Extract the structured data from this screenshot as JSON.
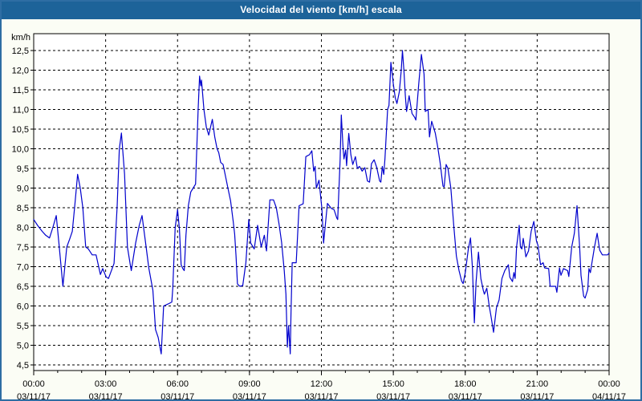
{
  "window": {
    "title": "Velocidad del viento [km/h] escala"
  },
  "chart_data": {
    "type": "line",
    "title": "Velocidad del viento [km/h] escala",
    "xlabel": "",
    "ylabel": "km/h",
    "x_unit": "hours since 03/11/17 00:00",
    "xlim": [
      0,
      24
    ],
    "ylim": [
      4.5,
      12.5
    ],
    "grid": "dashed-black",
    "legend": "none",
    "line_color": "#0000cd",
    "titlebar_color": "#1d6399",
    "border_color": "#2e6da3",
    "y_ticks": [
      {
        "v": 4.5,
        "label": "4,5"
      },
      {
        "v": 5.0,
        "label": "5,0"
      },
      {
        "v": 5.5,
        "label": "5,5"
      },
      {
        "v": 6.0,
        "label": "6,0"
      },
      {
        "v": 6.5,
        "label": "6,5"
      },
      {
        "v": 7.0,
        "label": "7,0"
      },
      {
        "v": 7.5,
        "label": "7,5"
      },
      {
        "v": 8.0,
        "label": "8,0"
      },
      {
        "v": 8.5,
        "label": "8,5"
      },
      {
        "v": 9.0,
        "label": "9,0"
      },
      {
        "v": 9.5,
        "label": "9,5"
      },
      {
        "v": 10.0,
        "label": "10,0"
      },
      {
        "v": 10.5,
        "label": "10,5"
      },
      {
        "v": 11.0,
        "label": "11,0"
      },
      {
        "v": 11.5,
        "label": "11,5"
      },
      {
        "v": 12.0,
        "label": "12,0"
      },
      {
        "v": 12.5,
        "label": "12,5"
      }
    ],
    "x_ticks": [
      {
        "h": 0,
        "time": "00:00",
        "date": "03/11/17"
      },
      {
        "h": 3,
        "time": "03:00",
        "date": "03/11/17"
      },
      {
        "h": 6,
        "time": "06:00",
        "date": "03/11/17"
      },
      {
        "h": 9,
        "time": "09:00",
        "date": "03/11/17"
      },
      {
        "h": 12,
        "time": "12:00",
        "date": "03/11/17"
      },
      {
        "h": 15,
        "time": "15:00",
        "date": "03/11/17"
      },
      {
        "h": 18,
        "time": "18:00",
        "date": "03/11/17"
      },
      {
        "h": 21,
        "time": "21:00",
        "date": "03/11/17"
      },
      {
        "h": 24,
        "time": "00:00",
        "date": "04/11/17"
      }
    ],
    "series": [
      {
        "name": "Velocidad del viento",
        "points": [
          [
            0.0,
            8.2
          ],
          [
            0.16,
            8.05
          ],
          [
            0.35,
            7.9
          ],
          [
            0.5,
            7.8
          ],
          [
            0.66,
            7.73
          ],
          [
            0.8,
            8.0
          ],
          [
            0.94,
            8.3
          ],
          [
            1.05,
            7.6
          ],
          [
            1.22,
            6.5
          ],
          [
            1.38,
            7.5
          ],
          [
            1.5,
            7.7
          ],
          [
            1.61,
            7.9
          ],
          [
            1.72,
            8.6
          ],
          [
            1.83,
            9.35
          ],
          [
            1.94,
            9.0
          ],
          [
            2.05,
            8.5
          ],
          [
            2.17,
            7.5
          ],
          [
            2.28,
            7.45
          ],
          [
            2.44,
            7.3
          ],
          [
            2.6,
            7.3
          ],
          [
            2.78,
            6.8
          ],
          [
            2.88,
            6.95
          ],
          [
            3.02,
            6.74
          ],
          [
            3.12,
            6.7
          ],
          [
            3.35,
            7.08
          ],
          [
            3.48,
            8.54
          ],
          [
            3.57,
            10.0
          ],
          [
            3.66,
            10.4
          ],
          [
            3.79,
            9.36
          ],
          [
            3.91,
            7.5
          ],
          [
            4.02,
            7.08
          ],
          [
            4.07,
            6.9
          ],
          [
            4.25,
            7.6
          ],
          [
            4.4,
            8.05
          ],
          [
            4.52,
            8.3
          ],
          [
            4.69,
            7.5
          ],
          [
            4.8,
            6.97
          ],
          [
            4.97,
            6.4
          ],
          [
            5.08,
            5.4
          ],
          [
            5.19,
            5.2
          ],
          [
            5.32,
            4.78
          ],
          [
            5.42,
            6.0
          ],
          [
            5.6,
            6.05
          ],
          [
            5.76,
            6.1
          ],
          [
            5.8,
            6.45
          ],
          [
            5.9,
            8.0
          ],
          [
            6.0,
            8.45
          ],
          [
            6.08,
            7.95
          ],
          [
            6.15,
            7.05
          ],
          [
            6.22,
            6.95
          ],
          [
            6.28,
            6.9
          ],
          [
            6.35,
            7.8
          ],
          [
            6.45,
            8.55
          ],
          [
            6.55,
            8.9
          ],
          [
            6.65,
            9.0
          ],
          [
            6.75,
            9.1
          ],
          [
            6.8,
            10.0
          ],
          [
            6.86,
            11.0
          ],
          [
            6.92,
            11.85
          ],
          [
            6.97,
            11.6
          ],
          [
            7.0,
            11.75
          ],
          [
            7.1,
            11.0
          ],
          [
            7.2,
            10.55
          ],
          [
            7.3,
            10.35
          ],
          [
            7.45,
            10.75
          ],
          [
            7.55,
            10.3
          ],
          [
            7.65,
            10.0
          ],
          [
            7.72,
            9.9
          ],
          [
            7.8,
            9.65
          ],
          [
            7.9,
            9.6
          ],
          [
            8.0,
            9.3
          ],
          [
            8.1,
            9.0
          ],
          [
            8.21,
            8.68
          ],
          [
            8.32,
            8.15
          ],
          [
            8.38,
            7.83
          ],
          [
            8.44,
            7.28
          ],
          [
            8.5,
            6.56
          ],
          [
            8.6,
            6.5
          ],
          [
            8.72,
            6.52
          ],
          [
            8.85,
            7.1
          ],
          [
            8.97,
            8.2
          ],
          [
            9.05,
            7.6
          ],
          [
            9.2,
            7.45
          ],
          [
            9.34,
            8.05
          ],
          [
            9.49,
            7.5
          ],
          [
            9.62,
            7.8
          ],
          [
            9.71,
            7.4
          ],
          [
            9.85,
            8.7
          ],
          [
            10.0,
            8.7
          ],
          [
            10.12,
            8.5
          ],
          [
            10.23,
            8.1
          ],
          [
            10.34,
            7.62
          ],
          [
            10.45,
            6.9
          ],
          [
            10.52,
            6.3
          ],
          [
            10.58,
            4.95
          ],
          [
            10.63,
            5.5
          ],
          [
            10.7,
            4.78
          ],
          [
            10.73,
            5.8
          ],
          [
            10.78,
            7.1
          ],
          [
            10.95,
            7.1
          ],
          [
            11.07,
            8.55
          ],
          [
            11.24,
            8.6
          ],
          [
            11.35,
            9.8
          ],
          [
            11.5,
            9.85
          ],
          [
            11.6,
            9.95
          ],
          [
            11.68,
            9.43
          ],
          [
            11.74,
            9.55
          ],
          [
            11.79,
            9.0
          ],
          [
            11.9,
            9.2
          ],
          [
            12.02,
            8.48
          ],
          [
            12.09,
            7.6
          ],
          [
            12.25,
            8.61
          ],
          [
            12.42,
            8.48
          ],
          [
            12.53,
            8.45
          ],
          [
            12.64,
            8.24
          ],
          [
            12.68,
            8.2
          ],
          [
            12.78,
            9.7
          ],
          [
            12.83,
            10.86
          ],
          [
            12.9,
            10.05
          ],
          [
            12.94,
            9.74
          ],
          [
            13.01,
            9.97
          ],
          [
            13.05,
            9.57
          ],
          [
            13.14,
            10.39
          ],
          [
            13.23,
            9.85
          ],
          [
            13.31,
            9.6
          ],
          [
            13.42,
            9.8
          ],
          [
            13.5,
            9.5
          ],
          [
            13.59,
            9.55
          ],
          [
            13.7,
            9.43
          ],
          [
            13.81,
            9.52
          ],
          [
            13.92,
            9.18
          ],
          [
            14.01,
            9.15
          ],
          [
            14.09,
            9.62
          ],
          [
            14.2,
            9.72
          ],
          [
            14.31,
            9.52
          ],
          [
            14.43,
            9.18
          ],
          [
            14.48,
            9.15
          ],
          [
            14.54,
            9.55
          ],
          [
            14.6,
            9.35
          ],
          [
            14.65,
            9.75
          ],
          [
            14.76,
            11.0
          ],
          [
            14.82,
            11.1
          ],
          [
            14.9,
            12.2
          ],
          [
            15.0,
            11.65
          ],
          [
            15.08,
            11.3
          ],
          [
            15.15,
            11.15
          ],
          [
            15.25,
            11.45
          ],
          [
            15.33,
            12.0
          ],
          [
            15.38,
            12.5
          ],
          [
            15.44,
            12.0
          ],
          [
            15.5,
            11.35
          ],
          [
            15.55,
            10.95
          ],
          [
            15.66,
            11.35
          ],
          [
            15.78,
            10.9
          ],
          [
            15.89,
            10.8
          ],
          [
            15.94,
            10.73
          ],
          [
            16.06,
            11.65
          ],
          [
            16.17,
            12.4
          ],
          [
            16.28,
            11.9
          ],
          [
            16.33,
            10.95
          ],
          [
            16.45,
            11.0
          ],
          [
            16.51,
            10.3
          ],
          [
            16.6,
            10.7
          ],
          [
            16.75,
            10.4
          ],
          [
            16.85,
            10.05
          ],
          [
            16.95,
            9.65
          ],
          [
            17.07,
            9.05
          ],
          [
            17.12,
            9.03
          ],
          [
            17.2,
            9.6
          ],
          [
            17.28,
            9.5
          ],
          [
            17.4,
            9.0
          ],
          [
            17.52,
            8.05
          ],
          [
            17.63,
            7.27
          ],
          [
            17.74,
            6.9
          ],
          [
            17.85,
            6.63
          ],
          [
            17.91,
            6.57
          ],
          [
            18.0,
            6.85
          ],
          [
            18.13,
            7.45
          ],
          [
            18.22,
            7.73
          ],
          [
            18.3,
            6.97
          ],
          [
            18.38,
            5.57
          ],
          [
            18.45,
            6.6
          ],
          [
            18.55,
            7.37
          ],
          [
            18.65,
            6.7
          ],
          [
            18.75,
            6.4
          ],
          [
            18.8,
            6.3
          ],
          [
            18.9,
            6.45
          ],
          [
            19.0,
            6.0
          ],
          [
            19.08,
            5.72
          ],
          [
            19.18,
            5.33
          ],
          [
            19.3,
            5.95
          ],
          [
            19.41,
            6.15
          ],
          [
            19.53,
            6.7
          ],
          [
            19.65,
            6.9
          ],
          [
            19.8,
            7.05
          ],
          [
            19.86,
            6.73
          ],
          [
            19.97,
            6.62
          ],
          [
            20.03,
            6.85
          ],
          [
            20.08,
            6.7
          ],
          [
            20.14,
            7.5
          ],
          [
            20.25,
            8.05
          ],
          [
            20.3,
            7.5
          ],
          [
            20.36,
            7.45
          ],
          [
            20.42,
            7.72
          ],
          [
            20.53,
            7.25
          ],
          [
            20.64,
            7.4
          ],
          [
            20.75,
            7.9
          ],
          [
            20.86,
            8.15
          ],
          [
            20.97,
            7.65
          ],
          [
            21.03,
            7.55
          ],
          [
            21.14,
            7.05
          ],
          [
            21.25,
            7.1
          ],
          [
            21.31,
            6.97
          ],
          [
            21.48,
            6.95
          ],
          [
            21.54,
            6.5
          ],
          [
            21.77,
            6.5
          ],
          [
            21.82,
            6.35
          ],
          [
            21.93,
            6.97
          ],
          [
            21.99,
            6.78
          ],
          [
            22.1,
            6.95
          ],
          [
            22.27,
            6.9
          ],
          [
            22.32,
            6.75
          ],
          [
            22.44,
            7.5
          ],
          [
            22.55,
            7.85
          ],
          [
            22.66,
            8.55
          ],
          [
            22.77,
            7.5
          ],
          [
            22.83,
            6.78
          ],
          [
            22.94,
            6.25
          ],
          [
            23.0,
            6.2
          ],
          [
            23.11,
            6.42
          ],
          [
            23.16,
            6.95
          ],
          [
            23.22,
            6.85
          ],
          [
            23.27,
            7.05
          ],
          [
            23.39,
            7.5
          ],
          [
            23.5,
            7.85
          ],
          [
            23.61,
            7.42
          ],
          [
            23.72,
            7.3
          ],
          [
            23.94,
            7.3
          ],
          [
            24.0,
            7.35
          ]
        ]
      }
    ]
  }
}
